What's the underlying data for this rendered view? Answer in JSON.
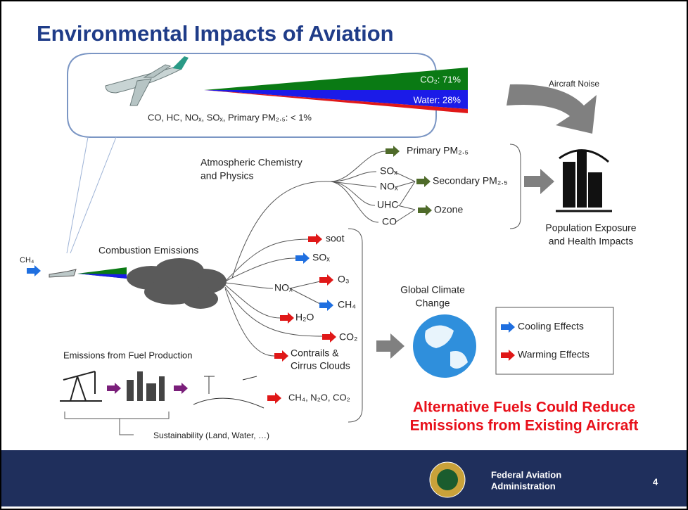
{
  "title": "Environmental Impacts of Aviation",
  "emissions_breakdown": {
    "co2": "CO₂: 71%",
    "water": "Water: 28%",
    "other": "CO, HC, NOₓ, SOₓ, Primary PM₂.₅: < 1%"
  },
  "aircraft_noise": "Aircraft Noise",
  "atmospheric": {
    "label": [
      "Atmospheric Chemistry",
      "and Physics"
    ],
    "inputs": [
      "SOₓ",
      "NOₓ",
      "UHC",
      "CO"
    ],
    "primary_pm": "Primary PM₂.₅",
    "secondary_pm": "Secondary PM₂.₅",
    "ozone": "Ozone"
  },
  "health": [
    "Population Exposure",
    "and Health Impacts"
  ],
  "ch4_input": "CH₄",
  "combustion": {
    "label": "Combustion Emissions",
    "soot": "soot",
    "sox": "SOₓ",
    "nox": "NOₓ",
    "o3": "O₃",
    "ch4": "CH₄",
    "h2o": "H₂O",
    "co2": "CO₂",
    "contrails": [
      "Contrails &",
      "Cirrus Clouds"
    ]
  },
  "climate": [
    "Global Climate",
    "Change"
  ],
  "legend": {
    "cooling": "Cooling Effects",
    "warming": "Warming Effects"
  },
  "fuel_production": {
    "label": "Emissions from Fuel Production",
    "outputs": "CH₄, N₂O, CO₂",
    "sustainability": "Sustainability  (Land,  Water,  …)"
  },
  "conclusion": [
    "Alternative Fuels Could Reduce",
    "Emissions from Existing Aircraft"
  ],
  "footer": {
    "agency": [
      "Federal Aviation",
      "Administration"
    ],
    "page": "4"
  }
}
